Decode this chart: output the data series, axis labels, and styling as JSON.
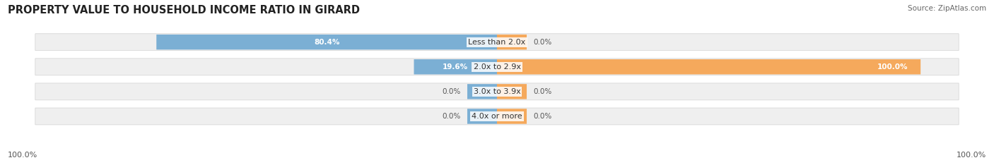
{
  "title": "PROPERTY VALUE TO HOUSEHOLD INCOME RATIO IN GIRARD",
  "source": "Source: ZipAtlas.com",
  "categories": [
    "Less than 2.0x",
    "2.0x to 2.9x",
    "3.0x to 3.9x",
    "4.0x or more"
  ],
  "without_mortgage": [
    80.4,
    19.6,
    0.0,
    0.0
  ],
  "with_mortgage": [
    0.0,
    100.0,
    0.0,
    0.0
  ],
  "without_mortgage_color": "#7bafd4",
  "with_mortgage_color": "#f5a95c",
  "bar_bg_color": "#efefef",
  "bar_bg_edge": "#d8d8d8",
  "x_left_label": "100.0%",
  "x_right_label": "100.0%",
  "title_fontsize": 10.5,
  "source_fontsize": 7.5,
  "label_fontsize": 8,
  "value_fontsize": 7.5,
  "axis_label_fontsize": 8,
  "legend_fontsize": 8,
  "bar_height": 0.62,
  "stub_size": 7.0,
  "figsize": [
    14.06,
    2.34
  ],
  "dpi": 100
}
